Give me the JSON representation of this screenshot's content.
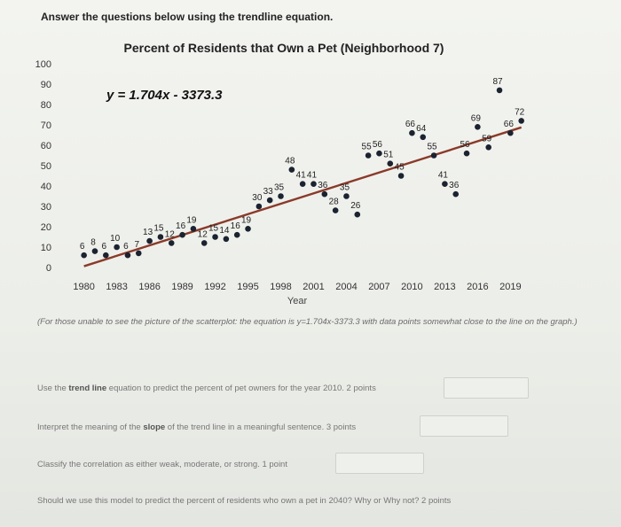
{
  "intro": "Answer the questions below using the trendline equation.",
  "chart_data": {
    "type": "scatter",
    "title": "Percent of Residents that Own a Pet (Neighborhood 7)",
    "xlabel": "Year",
    "ylabel": "",
    "xlim": [
      1978,
      2021
    ],
    "ylim": [
      0,
      100
    ],
    "x_ticks": [
      1980,
      1983,
      1986,
      1989,
      1992,
      1995,
      1998,
      2001,
      2004,
      2007,
      2010,
      2013,
      2016,
      2019
    ],
    "y_ticks": [
      0,
      10,
      20,
      30,
      40,
      50,
      60,
      70,
      80,
      90,
      100
    ],
    "equation_label": "y = 1.704x - 3373.3",
    "trendline": {
      "slope": 1.704,
      "intercept": -3373.3,
      "color": "#8b3a2a"
    },
    "point_color": "#1b2230",
    "points": [
      {
        "x": 1980,
        "y": 6,
        "label": "6"
      },
      {
        "x": 1981,
        "y": 8,
        "label": "8"
      },
      {
        "x": 1982,
        "y": 6,
        "label": "6"
      },
      {
        "x": 1983,
        "y": 10,
        "label": "10"
      },
      {
        "x": 1984,
        "y": 6,
        "label": "6"
      },
      {
        "x": 1985,
        "y": 7,
        "label": "7"
      },
      {
        "x": 1986,
        "y": 13,
        "label": "13"
      },
      {
        "x": 1987,
        "y": 15,
        "label": "15"
      },
      {
        "x": 1988,
        "y": 12,
        "label": "12"
      },
      {
        "x": 1989,
        "y": 16,
        "label": "16"
      },
      {
        "x": 1990,
        "y": 19,
        "label": "19"
      },
      {
        "x": 1991,
        "y": 12,
        "label": "12"
      },
      {
        "x": 1992,
        "y": 15,
        "label": "15"
      },
      {
        "x": 1993,
        "y": 14,
        "label": "14"
      },
      {
        "x": 1994,
        "y": 16,
        "label": "16"
      },
      {
        "x": 1995,
        "y": 19,
        "label": "19"
      },
      {
        "x": 1996,
        "y": 30,
        "label": "30"
      },
      {
        "x": 1997,
        "y": 33,
        "label": "33"
      },
      {
        "x": 1998,
        "y": 35,
        "label": "35"
      },
      {
        "x": 1999,
        "y": 48,
        "label": "48"
      },
      {
        "x": 2000,
        "y": 41,
        "label": "41"
      },
      {
        "x": 2001,
        "y": 41,
        "label": "41"
      },
      {
        "x": 2002,
        "y": 36,
        "label": "36"
      },
      {
        "x": 2003,
        "y": 28,
        "label": "28"
      },
      {
        "x": 2004,
        "y": 35,
        "label": "35"
      },
      {
        "x": 2005,
        "y": 26,
        "label": "26"
      },
      {
        "x": 2006,
        "y": 55,
        "label": "55"
      },
      {
        "x": 2007,
        "y": 56,
        "label": "56"
      },
      {
        "x": 2008,
        "y": 51,
        "label": "51"
      },
      {
        "x": 2009,
        "y": 45,
        "label": "45"
      },
      {
        "x": 2010,
        "y": 66,
        "label": "66"
      },
      {
        "x": 2011,
        "y": 64,
        "label": "64"
      },
      {
        "x": 2012,
        "y": 55,
        "label": "55"
      },
      {
        "x": 2013,
        "y": 41,
        "label": "41"
      },
      {
        "x": 2014,
        "y": 36,
        "label": "36"
      },
      {
        "x": 2015,
        "y": 56,
        "label": "56"
      },
      {
        "x": 2016,
        "y": 69,
        "label": "69"
      },
      {
        "x": 2017,
        "y": 59,
        "label": "59"
      },
      {
        "x": 2018,
        "y": 87,
        "label": "87"
      },
      {
        "x": 2019,
        "y": 66,
        "label": "66"
      },
      {
        "x": 2020,
        "y": 72,
        "label": "72"
      }
    ]
  },
  "note": "(For those unable to see the picture of the scatterplot: the equation is y=1.704x-3373.3 with data points somewhat close to the line on the graph.)",
  "questions": [
    {
      "prefix": "Use the ",
      "bold": "trend line",
      "suffix": " equation to predict the percent of pet owners for the year 2010. 2 points"
    },
    {
      "prefix": "Interpret the meaning of the ",
      "bold": "slope",
      "suffix": " of the trend line in a meaningful sentence. 3 points"
    },
    {
      "prefix": "Classify the correlation as either weak, moderate, or strong. 1 point",
      "bold": "",
      "suffix": ""
    },
    {
      "prefix": "Should we use this model to predict the percent of residents who own a pet in 2040? Why or Why not? 2 points",
      "bold": "",
      "suffix": ""
    }
  ]
}
